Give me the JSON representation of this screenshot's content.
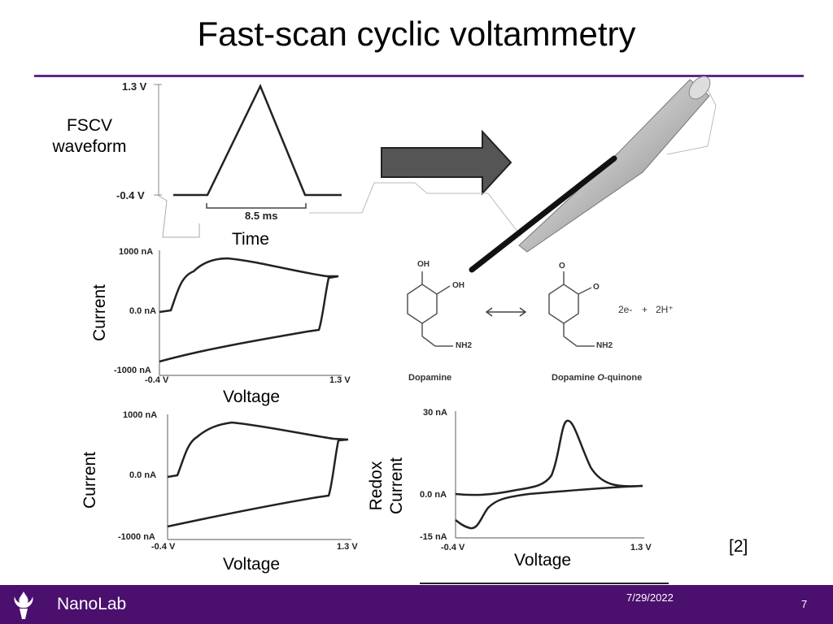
{
  "slide": {
    "title": "Fast-scan cyclic voltammetry",
    "citation": "[2]",
    "footer": {
      "brand": "NanoLab",
      "date": "7/29/2022",
      "page": "7"
    },
    "colors": {
      "title_rule": "#5b2a86",
      "footer_bg": "#4b0f6e",
      "arrow": "#555555"
    }
  },
  "waveform": {
    "label_line1": "FSCV",
    "label_line2": "waveform",
    "ytick_high": "1.3 V",
    "ytick_low": "-0.4 V",
    "duration": "8.5 ms",
    "xlabel": "Time"
  },
  "cv_top": {
    "ylabel": "Current",
    "xlabel": "Voltage",
    "yticks": [
      "1000 nA",
      "0.0 nA",
      "-1000 nA"
    ],
    "xticks": [
      "-0.4 V",
      "1.3 V"
    ]
  },
  "cv_bottom": {
    "ylabel": "Current",
    "xlabel": "Voltage",
    "yticks": [
      "1000 nA",
      "0.0 nA",
      "-1000 nA"
    ],
    "xticks": [
      "-0.4 V",
      "1.3 V"
    ]
  },
  "redox": {
    "ylabel_line1": "Redox",
    "ylabel_line2": "Current",
    "xlabel": "Voltage",
    "yticks": [
      "30 nA",
      "0.0 nA",
      "-15 nA"
    ],
    "xticks": [
      "-0.4 V",
      "1.3 V"
    ]
  },
  "reaction": {
    "reactant": "Dopamine",
    "product_a": "Dopamine ",
    "product_o": "O",
    "product_b": "-quinone",
    "oh1": "OH",
    "oh2": "OH",
    "nh2_1": "NH2",
    "nh2_2": "NH2",
    "electrons": "2e-",
    "plus": "+",
    "protons": "2H⁺",
    "o1": "O",
    "o2": "O"
  },
  "icons": {
    "footer_logo": "torch-icon",
    "arrow": "right-arrow-icon",
    "electrode": "carbon-fiber-electrode-icon",
    "equilibrium": "double-arrow-icon"
  }
}
